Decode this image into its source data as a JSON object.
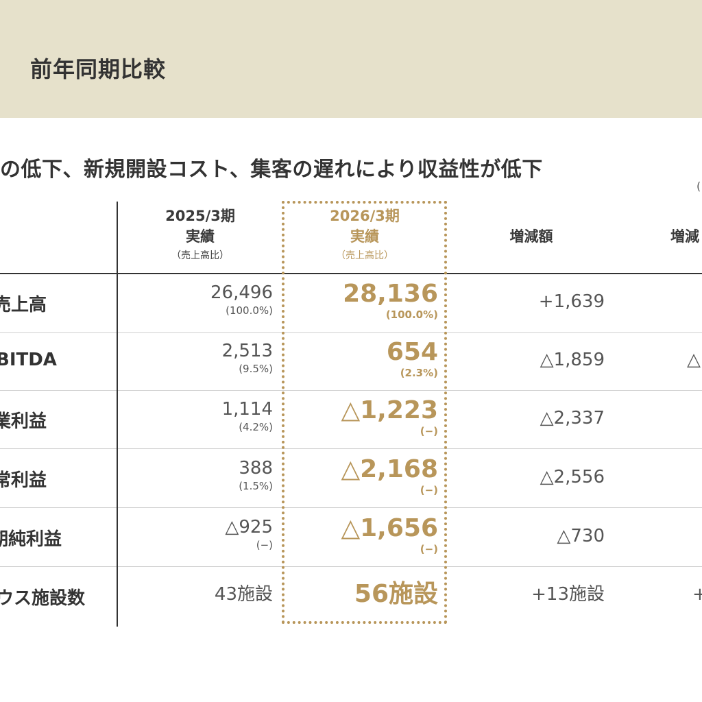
{
  "header": {
    "title": "前年同期比較"
  },
  "subtitle": "の低下、新規開設コスト、集客の遅れにより収益性が低下",
  "paren_fragment": "(",
  "columns": {
    "prev": {
      "period": "2025/3期",
      "label": "実績",
      "note": "（売上高比）"
    },
    "curr": {
      "period": "2026/3期",
      "label": "実績",
      "note": "（売上高比）"
    },
    "diff": {
      "label": "増減額"
    },
    "rate": {
      "label": "増減"
    }
  },
  "rows": [
    {
      "label": "売上高",
      "prev": "26,496",
      "prev_ratio": "(100.0%)",
      "curr": "28,136",
      "curr_ratio": "(100.0%)",
      "diff": "+1,639",
      "rate": ""
    },
    {
      "label": "BITDA",
      "prev": "2,513",
      "prev_ratio": "(9.5%)",
      "curr": "654",
      "curr_ratio": "(2.3%)",
      "diff": "△1,859",
      "rate": "△"
    },
    {
      "label": "業利益",
      "prev": "1,114",
      "prev_ratio": "(4.2%)",
      "curr": "△1,223",
      "curr_ratio": "(−)",
      "diff": "△2,337",
      "rate": ""
    },
    {
      "label": "常利益",
      "prev": "388",
      "prev_ratio": "(1.5%)",
      "curr": "△2,168",
      "curr_ratio": "(−)",
      "diff": "△2,556",
      "rate": ""
    },
    {
      "label": "期純利益",
      "prev": "△925",
      "prev_ratio": "(−)",
      "curr": "△1,656",
      "curr_ratio": "(−)",
      "diff": "△730",
      "rate": ""
    },
    {
      "label": "ウス施設数",
      "prev": "43施設",
      "prev_ratio": "",
      "curr": "56施設",
      "curr_ratio": "",
      "diff": "+13施設",
      "rate": "+"
    }
  ],
  "colors": {
    "accent": "#b8965a",
    "band": "#e6e1cb",
    "text": "#333333"
  }
}
